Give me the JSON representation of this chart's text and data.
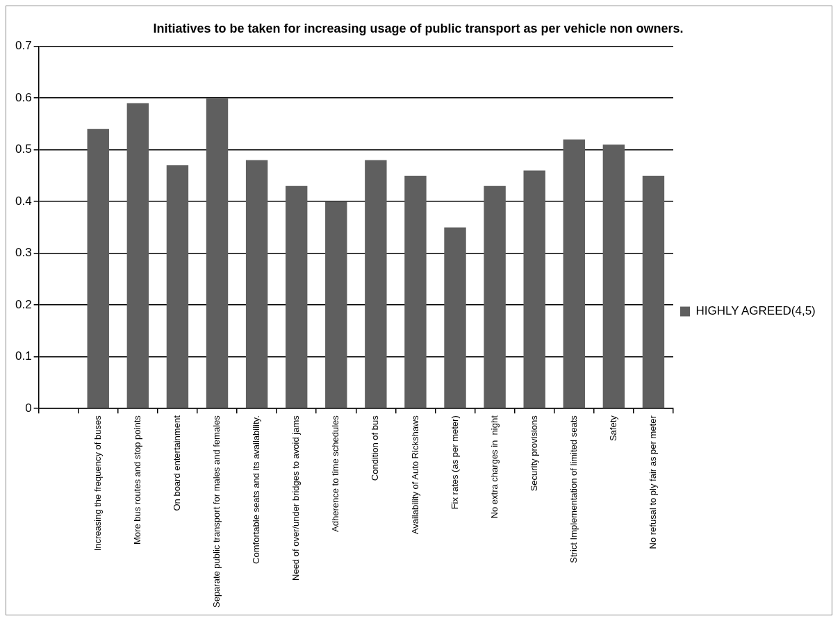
{
  "chart_data": {
    "type": "bar",
    "title": "Initiatives to be taken for increasing usage of public transport as per vehicle non owners.",
    "categories": [
      null,
      "Increasing the frequency of buses",
      "More bus routes and stop points",
      "On board entertainment",
      "Separate public transport for males and females",
      "Comfortable seats and its availability.",
      "Need of over/under bridges to avoid jams",
      "Adherence to time schedules",
      "Condition of bus",
      "Availability of Auto Rickshaws",
      "Fix rates (as per meter)",
      "No extra charges in  night",
      "Security provisions",
      "Strict Implementation of limited seats",
      "Safety",
      "No refusal to ply fair as per meter"
    ],
    "series": [
      {
        "name": "HIGHLY AGREED(4,5)",
        "color": "#5f5f5f",
        "values": [
          null,
          0.54,
          0.59,
          0.47,
          0.6,
          0.48,
          0.43,
          0.4,
          0.48,
          0.45,
          0.35,
          0.43,
          0.46,
          0.52,
          0.51,
          0.45
        ]
      }
    ],
    "ylim": [
      0,
      0.7
    ],
    "yticks": [
      0,
      0.1,
      0.2,
      0.3,
      0.4,
      0.5,
      0.6,
      0.7
    ],
    "grid": "y",
    "legend": "right"
  }
}
